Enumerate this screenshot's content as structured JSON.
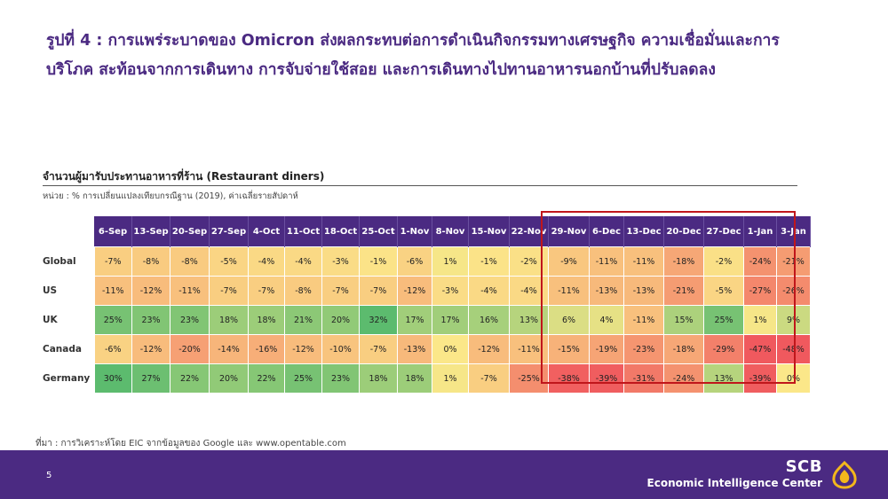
{
  "title": {
    "line1": "รูปที่ 4 : การแพร่ระบาดของ Omicron ส่งผลกระทบต่อการดำเนินกิจกรรมทางเศรษฐกิจ ความเชื่อมั่นและการ",
    "line2": "บริโภค สะท้อนจากการเดินทาง การจับจ่ายใช้สอย และการเดินทางไปทานอาหารนอกบ้านที่ปรับลดลง"
  },
  "chart_data": {
    "type": "heatmap",
    "title": "จำนวนผู้มารับประทานอาหารที่ร้าน (Restaurant diners)",
    "subtitle": "หน่วย : % การเปลี่ยนแปลงเทียบกรณีฐาน (2019), ค่าเฉลี่ยรายสัปดาห์",
    "columns": [
      "6-Sep",
      "13-Sep",
      "20-Sep",
      "27-Sep",
      "4-Oct",
      "11-Oct",
      "18-Oct",
      "25-Oct",
      "1-Nov",
      "8-Nov",
      "15-Nov",
      "22-Nov",
      "29-Nov",
      "6-Dec",
      "13-Dec",
      "20-Dec",
      "27-Dec",
      "1-Jan",
      "3-Jan"
    ],
    "highlighted_from": "29-Nov",
    "rows": [
      {
        "name": "Global",
        "values": [
          -7,
          -8,
          -8,
          -5,
          -4,
          -4,
          -3,
          -1,
          -6,
          1,
          -1,
          -2,
          -9,
          -11,
          -11,
          -18,
          -2,
          -24,
          -21
        ]
      },
      {
        "name": "US",
        "values": [
          -11,
          -12,
          -11,
          -7,
          -7,
          -8,
          -7,
          -7,
          -12,
          -3,
          -4,
          -4,
          -11,
          -13,
          -13,
          -21,
          -5,
          -27,
          -26
        ]
      },
      {
        "name": "UK",
        "values": [
          25,
          23,
          23,
          18,
          18,
          21,
          20,
          32,
          17,
          17,
          16,
          13,
          6,
          4,
          -11,
          15,
          25,
          1,
          9
        ]
      },
      {
        "name": "Canada",
        "values": [
          -6,
          -12,
          -20,
          -14,
          -16,
          -12,
          -10,
          -7,
          -13,
          0,
          -12,
          -11,
          -15,
          -19,
          -23,
          -18,
          -29,
          -47,
          -48
        ]
      },
      {
        "name": "Germany",
        "values": [
          30,
          27,
          22,
          20,
          22,
          25,
          23,
          18,
          18,
          1,
          -7,
          -25,
          -38,
          -39,
          -31,
          -24,
          13,
          -39,
          0
        ]
      }
    ],
    "value_suffix": "%"
  },
  "source": "ที่มา : การวิเคราะห์โดย EIC จากข้อมูลของ Google และ www.opentable.com",
  "footer": {
    "page_number": "5",
    "brand": "SCB",
    "brand_sub": "Economic Intelligence Center",
    "logo_icon": "scb-logo-icon"
  },
  "colors": {
    "header_purple": "#4b2a82",
    "highlight_border": "#c0161b",
    "heat_low": "#f0595e",
    "heat_mid": "#fbe789",
    "heat_high": "#5cbb6e"
  }
}
